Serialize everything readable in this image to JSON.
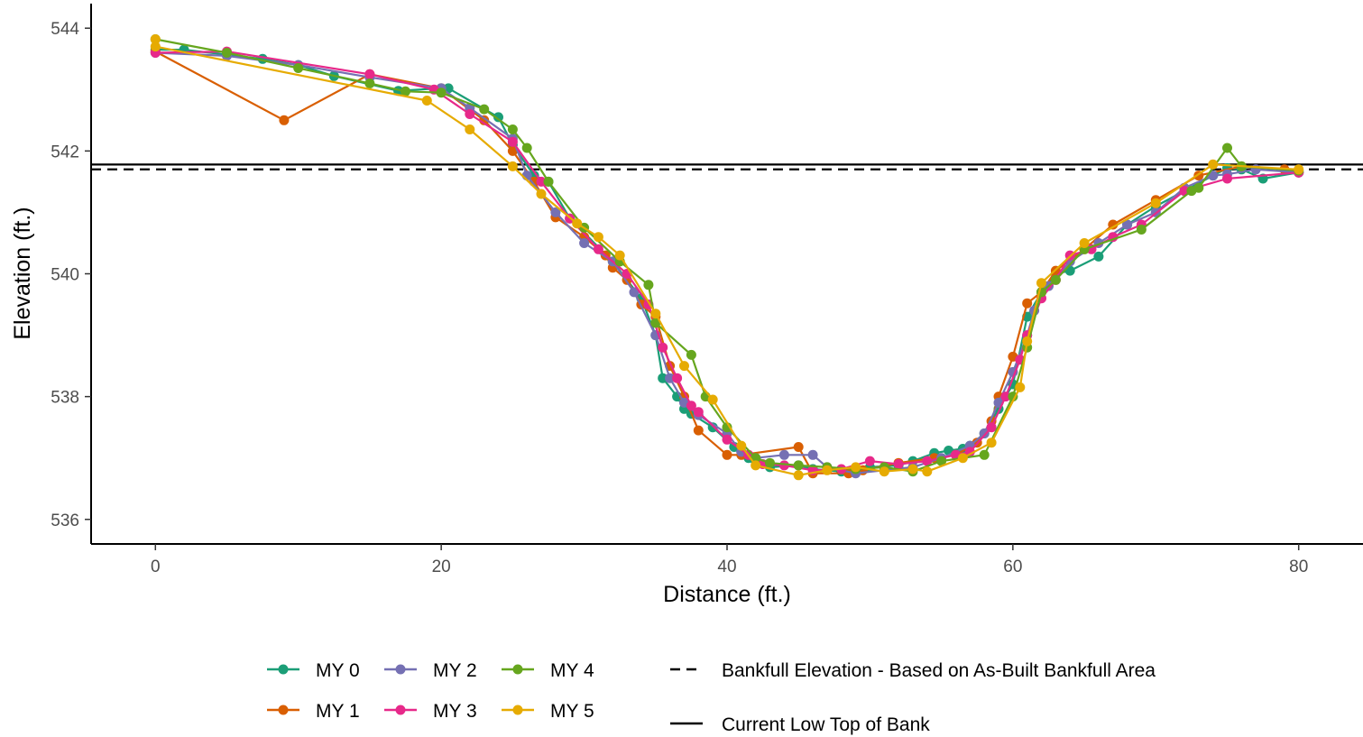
{
  "chart_data": {
    "type": "line",
    "xlabel": "Distance (ft.)",
    "ylabel": "Elevation (ft.)",
    "xlim": [
      -4.5,
      84.5
    ],
    "ylim": [
      535.6,
      544.4
    ],
    "x_ticks": [
      0,
      20,
      40,
      60,
      80
    ],
    "y_ticks": [
      536,
      538,
      540,
      542,
      544
    ],
    "grid": false,
    "legend_position": "bottom",
    "series": [
      {
        "name": "MY 0",
        "color": "#1b9e77",
        "points": [
          [
            0.0,
            543.65
          ],
          [
            2.0,
            543.65
          ],
          [
            7.5,
            543.5
          ],
          [
            10.0,
            543.4
          ],
          [
            12.5,
            543.22
          ],
          [
            17.0,
            542.98
          ],
          [
            20.0,
            543.02
          ],
          [
            20.5,
            543.02
          ],
          [
            24.0,
            542.55
          ],
          [
            25.0,
            542.1
          ],
          [
            26.5,
            541.6
          ],
          [
            27.5,
            541.5
          ],
          [
            29.0,
            540.9
          ],
          [
            32.0,
            540.2
          ],
          [
            34.0,
            539.6
          ],
          [
            35.0,
            539.0
          ],
          [
            35.5,
            538.3
          ],
          [
            36.5,
            538.0
          ],
          [
            37.0,
            537.8
          ],
          [
            37.5,
            537.72
          ],
          [
            39.0,
            537.5
          ],
          [
            40.5,
            537.18
          ],
          [
            41.0,
            537.1
          ],
          [
            41.5,
            537.0
          ],
          [
            42.0,
            536.95
          ],
          [
            43.0,
            536.85
          ],
          [
            45.0,
            536.88
          ],
          [
            46.0,
            536.82
          ],
          [
            48.0,
            536.78
          ],
          [
            50.0,
            536.85
          ],
          [
            52.0,
            536.88
          ],
          [
            53.0,
            536.95
          ],
          [
            54.5,
            537.08
          ],
          [
            55.5,
            537.12
          ],
          [
            56.5,
            537.15
          ],
          [
            57.0,
            537.2
          ],
          [
            58.0,
            537.4
          ],
          [
            59.0,
            537.8
          ],
          [
            60.0,
            538.2
          ],
          [
            61.0,
            539.3
          ],
          [
            62.0,
            539.7
          ],
          [
            63.0,
            540.0
          ],
          [
            64.0,
            540.05
          ],
          [
            66.0,
            540.28
          ],
          [
            68.0,
            540.8
          ],
          [
            70.0,
            541.1
          ],
          [
            72.0,
            541.35
          ],
          [
            74.0,
            541.6
          ],
          [
            75.0,
            541.72
          ],
          [
            76.0,
            541.7
          ],
          [
            77.5,
            541.55
          ],
          [
            80.0,
            541.65
          ]
        ]
      },
      {
        "name": "MY 1",
        "color": "#d95f02",
        "points": [
          [
            0.0,
            543.62
          ],
          [
            9.0,
            542.5
          ],
          [
            15.0,
            543.25
          ],
          [
            20.0,
            543.02
          ],
          [
            23.0,
            542.5
          ],
          [
            25.0,
            542.0
          ],
          [
            26.5,
            541.5
          ],
          [
            28.0,
            540.92
          ],
          [
            30.0,
            540.6
          ],
          [
            31.5,
            540.3
          ],
          [
            32.0,
            540.1
          ],
          [
            33.0,
            539.9
          ],
          [
            34.0,
            539.5
          ],
          [
            35.0,
            539.3
          ],
          [
            36.0,
            538.5
          ],
          [
            37.0,
            538.0
          ],
          [
            38.0,
            537.45
          ],
          [
            40.0,
            537.05
          ],
          [
            41.0,
            537.05
          ],
          [
            45.0,
            537.18
          ],
          [
            46.0,
            536.75
          ],
          [
            48.5,
            536.75
          ],
          [
            49.5,
            536.8
          ],
          [
            52.0,
            536.92
          ],
          [
            54.5,
            537.0
          ],
          [
            56.0,
            537.05
          ],
          [
            57.5,
            537.25
          ],
          [
            58.5,
            537.6
          ],
          [
            59.0,
            538.0
          ],
          [
            60.0,
            538.65
          ],
          [
            61.0,
            539.52
          ],
          [
            62.0,
            539.7
          ],
          [
            63.0,
            540.05
          ],
          [
            65.0,
            540.4
          ],
          [
            67.0,
            540.8
          ],
          [
            70.0,
            541.2
          ],
          [
            73.0,
            541.6
          ],
          [
            76.0,
            541.75
          ],
          [
            79.0,
            541.7
          ],
          [
            80.0,
            541.65
          ]
        ]
      },
      {
        "name": "MY 2",
        "color": "#7570b3",
        "points": [
          [
            0.0,
            543.6
          ],
          [
            5.0,
            543.55
          ],
          [
            10.0,
            543.4
          ],
          [
            15.0,
            543.2
          ],
          [
            20.0,
            543.02
          ],
          [
            22.0,
            542.7
          ],
          [
            25.0,
            542.2
          ],
          [
            26.0,
            541.6
          ],
          [
            28.0,
            541.0
          ],
          [
            30.0,
            540.5
          ],
          [
            32.0,
            540.2
          ],
          [
            33.5,
            539.7
          ],
          [
            35.0,
            539.0
          ],
          [
            36.0,
            538.3
          ],
          [
            37.0,
            537.9
          ],
          [
            38.0,
            537.7
          ],
          [
            40.0,
            537.4
          ],
          [
            41.0,
            537.1
          ],
          [
            42.0,
            537.0
          ],
          [
            44.0,
            537.05
          ],
          [
            46.0,
            537.05
          ],
          [
            47.0,
            536.85
          ],
          [
            49.0,
            536.75
          ],
          [
            51.0,
            536.8
          ],
          [
            53.0,
            536.85
          ],
          [
            55.0,
            537.0
          ],
          [
            57.0,
            537.2
          ],
          [
            58.0,
            537.4
          ],
          [
            59.0,
            537.9
          ],
          [
            60.0,
            538.4
          ],
          [
            61.0,
            539.0
          ],
          [
            61.5,
            539.4
          ],
          [
            62.5,
            539.8
          ],
          [
            64.0,
            540.2
          ],
          [
            66.0,
            540.5
          ],
          [
            68.0,
            540.8
          ],
          [
            70.0,
            541.0
          ],
          [
            72.0,
            541.4
          ],
          [
            74.0,
            541.6
          ],
          [
            75.0,
            541.62
          ],
          [
            77.0,
            541.7
          ],
          [
            80.0,
            541.65
          ]
        ]
      },
      {
        "name": "MY 3",
        "color": "#e7298a",
        "points": [
          [
            0.0,
            543.6
          ],
          [
            5.0,
            543.62
          ],
          [
            15.0,
            543.25
          ],
          [
            19.5,
            543.0
          ],
          [
            22.0,
            542.6
          ],
          [
            25.0,
            542.15
          ],
          [
            27.0,
            541.5
          ],
          [
            29.0,
            540.9
          ],
          [
            31.0,
            540.4
          ],
          [
            33.0,
            540.0
          ],
          [
            34.5,
            539.5
          ],
          [
            35.5,
            538.8
          ],
          [
            36.5,
            538.3
          ],
          [
            37.5,
            537.85
          ],
          [
            38.0,
            537.75
          ],
          [
            40.0,
            537.3
          ],
          [
            41.5,
            537.05
          ],
          [
            42.5,
            536.9
          ],
          [
            44.0,
            536.88
          ],
          [
            46.0,
            536.8
          ],
          [
            48.0,
            536.82
          ],
          [
            50.0,
            536.95
          ],
          [
            52.0,
            536.9
          ],
          [
            54.0,
            536.95
          ],
          [
            56.0,
            537.05
          ],
          [
            57.0,
            537.1
          ],
          [
            58.5,
            537.5
          ],
          [
            59.5,
            538.0
          ],
          [
            60.5,
            538.6
          ],
          [
            61.0,
            539.0
          ],
          [
            62.0,
            539.6
          ],
          [
            63.0,
            539.9
          ],
          [
            64.0,
            540.3
          ],
          [
            65.5,
            540.4
          ],
          [
            67.0,
            540.6
          ],
          [
            69.0,
            540.8
          ],
          [
            72.0,
            541.35
          ],
          [
            75.0,
            541.55
          ],
          [
            80.0,
            541.65
          ]
        ]
      },
      {
        "name": "MY 4",
        "color": "#66a61e",
        "points": [
          [
            0.0,
            543.82
          ],
          [
            5.0,
            543.6
          ],
          [
            10.0,
            543.35
          ],
          [
            15.0,
            543.1
          ],
          [
            17.5,
            542.97
          ],
          [
            20.0,
            542.95
          ],
          [
            23.0,
            542.68
          ],
          [
            25.0,
            542.35
          ],
          [
            26.0,
            542.05
          ],
          [
            27.5,
            541.5
          ],
          [
            30.0,
            540.75
          ],
          [
            32.5,
            540.2
          ],
          [
            34.5,
            539.82
          ],
          [
            35.0,
            539.2
          ],
          [
            37.5,
            538.68
          ],
          [
            38.5,
            538.0
          ],
          [
            40.0,
            537.5
          ],
          [
            42.0,
            537.0
          ],
          [
            43.0,
            536.92
          ],
          [
            45.0,
            536.88
          ],
          [
            47.0,
            536.85
          ],
          [
            49.0,
            536.82
          ],
          [
            51.0,
            536.85
          ],
          [
            53.0,
            536.78
          ],
          [
            55.0,
            536.95
          ],
          [
            58.0,
            537.05
          ],
          [
            60.0,
            538.0
          ],
          [
            61.0,
            538.8
          ],
          [
            62.0,
            539.7
          ],
          [
            63.0,
            539.9
          ],
          [
            65.0,
            540.4
          ],
          [
            69.0,
            540.72
          ],
          [
            72.5,
            541.35
          ],
          [
            73.0,
            541.4
          ],
          [
            75.0,
            542.05
          ],
          [
            76.0,
            541.75
          ],
          [
            80.0,
            541.68
          ]
        ]
      },
      {
        "name": "MY 5",
        "color": "#e6ab02",
        "points": [
          [
            0.0,
            543.82
          ],
          [
            0.0,
            543.7
          ],
          [
            19.0,
            542.82
          ],
          [
            22.0,
            542.35
          ],
          [
            25.0,
            541.75
          ],
          [
            27.0,
            541.3
          ],
          [
            29.5,
            540.82
          ],
          [
            31.0,
            540.6
          ],
          [
            32.5,
            540.3
          ],
          [
            35.0,
            539.35
          ],
          [
            37.0,
            538.5
          ],
          [
            39.0,
            537.95
          ],
          [
            41.0,
            537.2
          ],
          [
            42.0,
            536.88
          ],
          [
            45.0,
            536.72
          ],
          [
            47.0,
            536.8
          ],
          [
            49.0,
            536.85
          ],
          [
            51.0,
            536.78
          ],
          [
            53.0,
            536.82
          ],
          [
            54.0,
            536.78
          ],
          [
            56.5,
            537.0
          ],
          [
            58.5,
            537.25
          ],
          [
            60.5,
            538.15
          ],
          [
            61.0,
            538.9
          ],
          [
            62.0,
            539.85
          ],
          [
            65.0,
            540.5
          ],
          [
            70.0,
            541.15
          ],
          [
            74.0,
            541.78
          ],
          [
            80.0,
            541.7
          ]
        ]
      }
    ],
    "reference_lines": [
      {
        "name": "Bankfull Elevation - Based on As-Built Bankfull Area",
        "y": 541.7,
        "style": "dashed",
        "color": "#000000"
      },
      {
        "name": "Current Low Top of Bank",
        "y": 541.78,
        "style": "solid",
        "color": "#000000"
      }
    ]
  }
}
